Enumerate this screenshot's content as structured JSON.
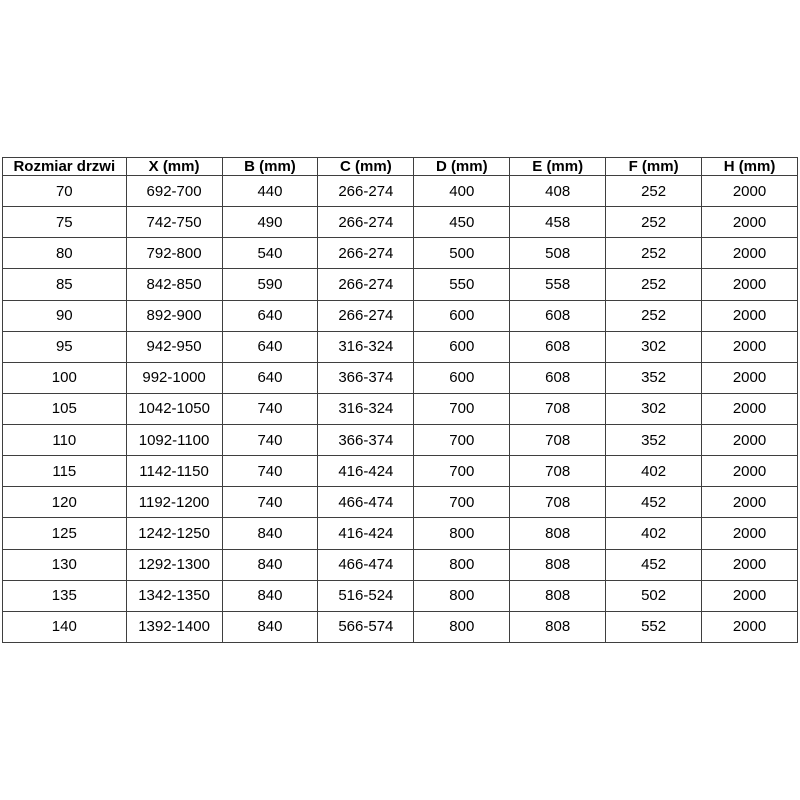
{
  "colors": {
    "background": "#ffffff",
    "border": "#3f3f3f",
    "text": "#000000"
  },
  "chart_data": {
    "type": "table",
    "title": "",
    "columns": [
      "Rozmiar drzwi",
      "X (mm)",
      "B (mm)",
      "C (mm)",
      "D (mm)",
      "E (mm)",
      "F (mm)",
      "H (mm)"
    ],
    "rows": [
      [
        "70",
        "692-700",
        "440",
        "266-274",
        "400",
        "408",
        "252",
        "2000"
      ],
      [
        "75",
        "742-750",
        "490",
        "266-274",
        "450",
        "458",
        "252",
        "2000"
      ],
      [
        "80",
        "792-800",
        "540",
        "266-274",
        "500",
        "508",
        "252",
        "2000"
      ],
      [
        "85",
        "842-850",
        "590",
        "266-274",
        "550",
        "558",
        "252",
        "2000"
      ],
      [
        "90",
        "892-900",
        "640",
        "266-274",
        "600",
        "608",
        "252",
        "2000"
      ],
      [
        "95",
        "942-950",
        "640",
        "316-324",
        "600",
        "608",
        "302",
        "2000"
      ],
      [
        "100",
        "992-1000",
        "640",
        "366-374",
        "600",
        "608",
        "352",
        "2000"
      ],
      [
        "105",
        "1042-1050",
        "740",
        "316-324",
        "700",
        "708",
        "302",
        "2000"
      ],
      [
        "110",
        "1092-1100",
        "740",
        "366-374",
        "700",
        "708",
        "352",
        "2000"
      ],
      [
        "115",
        "1142-1150",
        "740",
        "416-424",
        "700",
        "708",
        "402",
        "2000"
      ],
      [
        "120",
        "1192-1200",
        "740",
        "466-474",
        "700",
        "708",
        "452",
        "2000"
      ],
      [
        "125",
        "1242-1250",
        "840",
        "416-424",
        "800",
        "808",
        "402",
        "2000"
      ],
      [
        "130",
        "1292-1300",
        "840",
        "466-474",
        "800",
        "808",
        "452",
        "2000"
      ],
      [
        "135",
        "1342-1350",
        "840",
        "516-524",
        "800",
        "808",
        "502",
        "2000"
      ],
      [
        "140",
        "1392-1400",
        "840",
        "566-574",
        "800",
        "808",
        "552",
        "2000"
      ]
    ]
  }
}
